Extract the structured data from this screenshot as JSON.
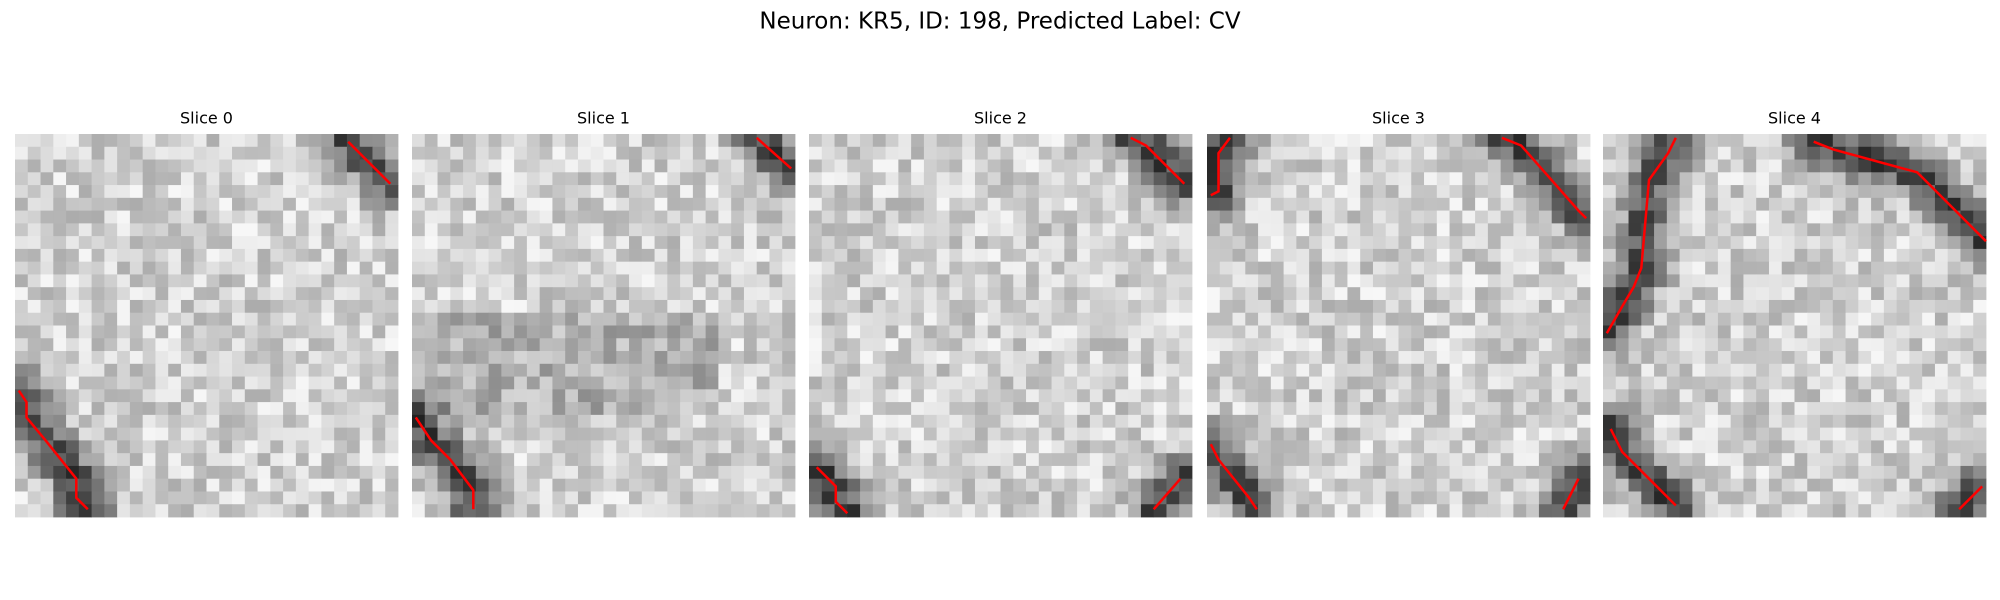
{
  "figure": {
    "title": "Neuron: KR5, ID: 198, Predicted Label: CV",
    "panels": [
      {
        "title": "Slice 0"
      },
      {
        "title": "Slice 1"
      },
      {
        "title": "Slice 2"
      },
      {
        "title": "Slice 3"
      },
      {
        "title": "Slice 4"
      }
    ]
  }
}
